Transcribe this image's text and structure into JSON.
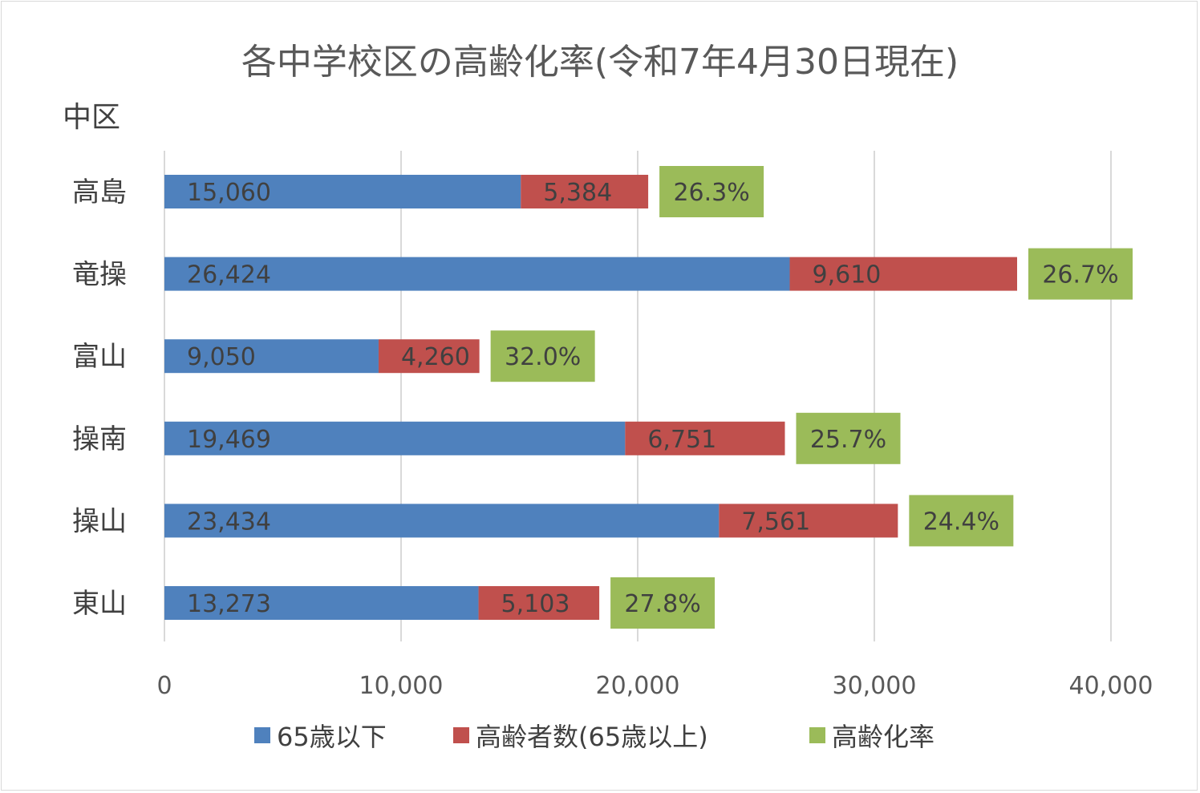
{
  "chart_data": {
    "type": "bar",
    "orientation": "horizontal",
    "stacked": true,
    "title": "各中学校区の高齢化率(令和7年4月30日現在)",
    "subtitle": "中区",
    "categories": [
      "高島",
      "竜操",
      "富山",
      "操南",
      "操山",
      "東山"
    ],
    "series": [
      {
        "name": "65歳以下",
        "color": "#4f81bd",
        "values": [
          15060,
          26424,
          9050,
          19469,
          23434,
          13273
        ],
        "labels": [
          "15,060",
          "26,424",
          "9,050",
          "19,469",
          "23,434",
          "13,273"
        ]
      },
      {
        "name": "高齢者数(65歳以上)",
        "color": "#c0504d",
        "values": [
          5384,
          9610,
          4260,
          6751,
          7561,
          5103
        ],
        "labels": [
          "5,384",
          "9,610",
          "4,260",
          "6,751",
          "7,561",
          "5,103"
        ]
      },
      {
        "name": "高齢化率",
        "color": "#9bbb59",
        "values": [
          26.3,
          26.7,
          32.0,
          25.7,
          24.4,
          27.8
        ],
        "labels": [
          "26.3%",
          "26.7%",
          "32.0%",
          "25.7%",
          "24.4%",
          "27.8%"
        ]
      }
    ],
    "xlim": [
      0,
      40000
    ],
    "xticks": [
      0,
      10000,
      20000,
      30000,
      40000
    ],
    "xtick_labels": [
      "0",
      "10,000",
      "20,000",
      "30,000",
      "40,000"
    ],
    "grid": true,
    "legend_position": "bottom"
  }
}
